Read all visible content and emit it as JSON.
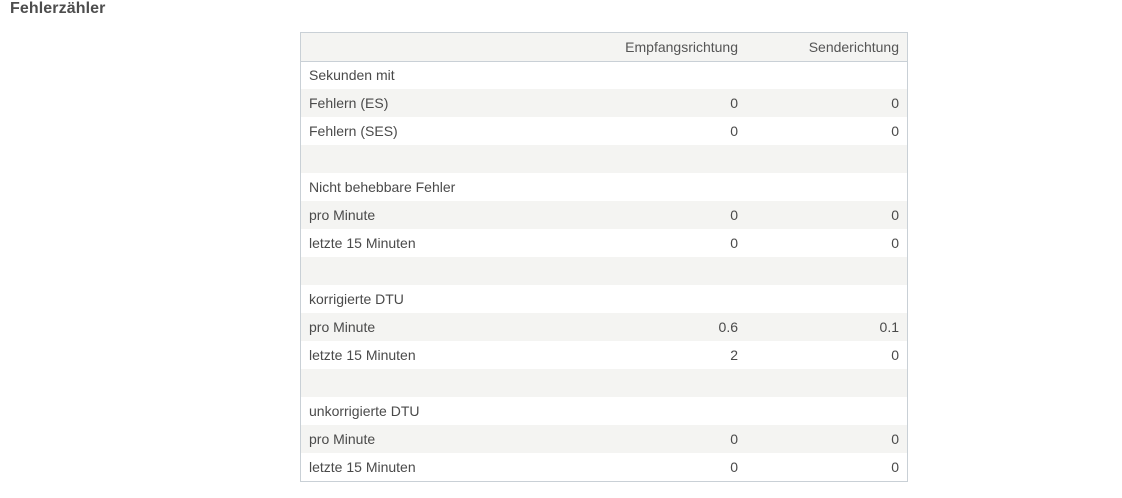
{
  "section": {
    "title": "Fehlerzähler"
  },
  "table": {
    "headers": [
      "",
      "Empfangsrichtung",
      "Senderichtung"
    ],
    "rows": [
      {
        "label": "Sekunden mit",
        "rx": "",
        "tx": ""
      },
      {
        "label": "Fehlern (ES)",
        "rx": "0",
        "tx": "0"
      },
      {
        "label": "Fehlern (SES)",
        "rx": "0",
        "tx": "0"
      },
      {
        "label": "",
        "rx": "",
        "tx": ""
      },
      {
        "label": "Nicht behebbare Fehler",
        "rx": "",
        "tx": ""
      },
      {
        "label": "pro Minute",
        "rx": "0",
        "tx": "0"
      },
      {
        "label": "letzte 15 Minuten",
        "rx": "0",
        "tx": "0"
      },
      {
        "label": "",
        "rx": "",
        "tx": ""
      },
      {
        "label": "korrigierte DTU",
        "rx": "",
        "tx": ""
      },
      {
        "label": "pro Minute",
        "rx": "0.6",
        "tx": "0.1"
      },
      {
        "label": "letzte 15 Minuten",
        "rx": "2",
        "tx": "0"
      },
      {
        "label": "",
        "rx": "",
        "tx": ""
      },
      {
        "label": "unkorrigierte DTU",
        "rx": "",
        "tx": ""
      },
      {
        "label": "pro Minute",
        "rx": "0",
        "tx": "0"
      },
      {
        "label": "letzte 15 Minuten",
        "rx": "0",
        "tx": "0"
      }
    ]
  },
  "colors": {
    "stripe": "#f4f4f2",
    "border": "#c9d0d6",
    "text": "#4a4a4a"
  }
}
